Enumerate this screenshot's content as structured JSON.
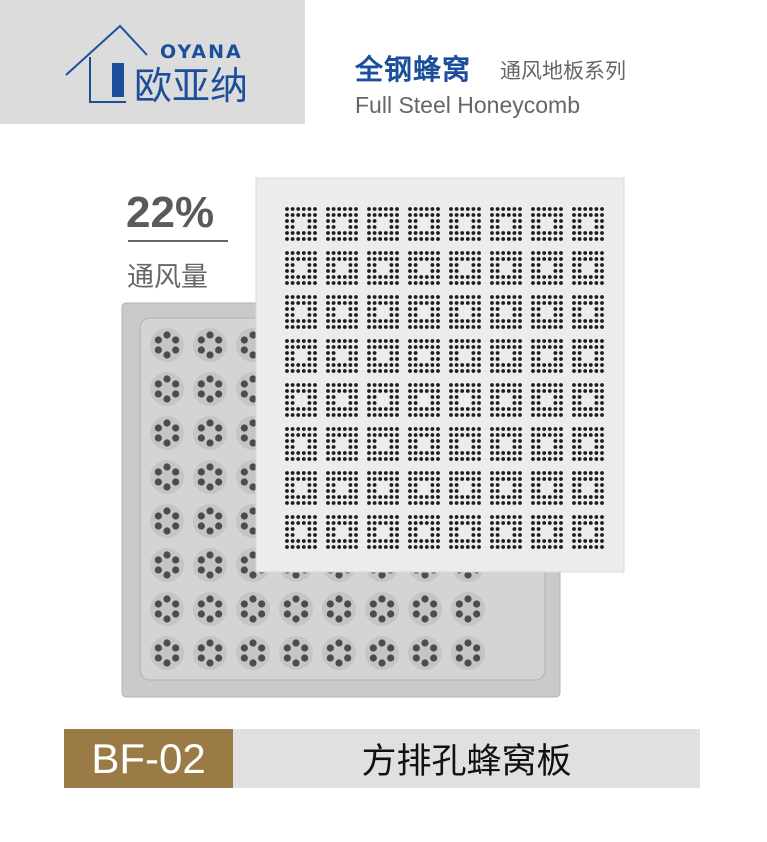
{
  "brand": {
    "logo_text_cn": "欧亚纳",
    "logo_text_en": "OYANA",
    "color": "#1b4f9c"
  },
  "header": {
    "title_cn": "全钢蜂窝",
    "subtitle_cn": "通风地板系列",
    "title_en": "Full Steel Honeycomb"
  },
  "spec": {
    "airflow_value": "22%",
    "airflow_label": "通风量"
  },
  "product": {
    "code": "BF-02",
    "name": "方排孔蜂窝板",
    "code_bar_color": "#9a7a45"
  }
}
